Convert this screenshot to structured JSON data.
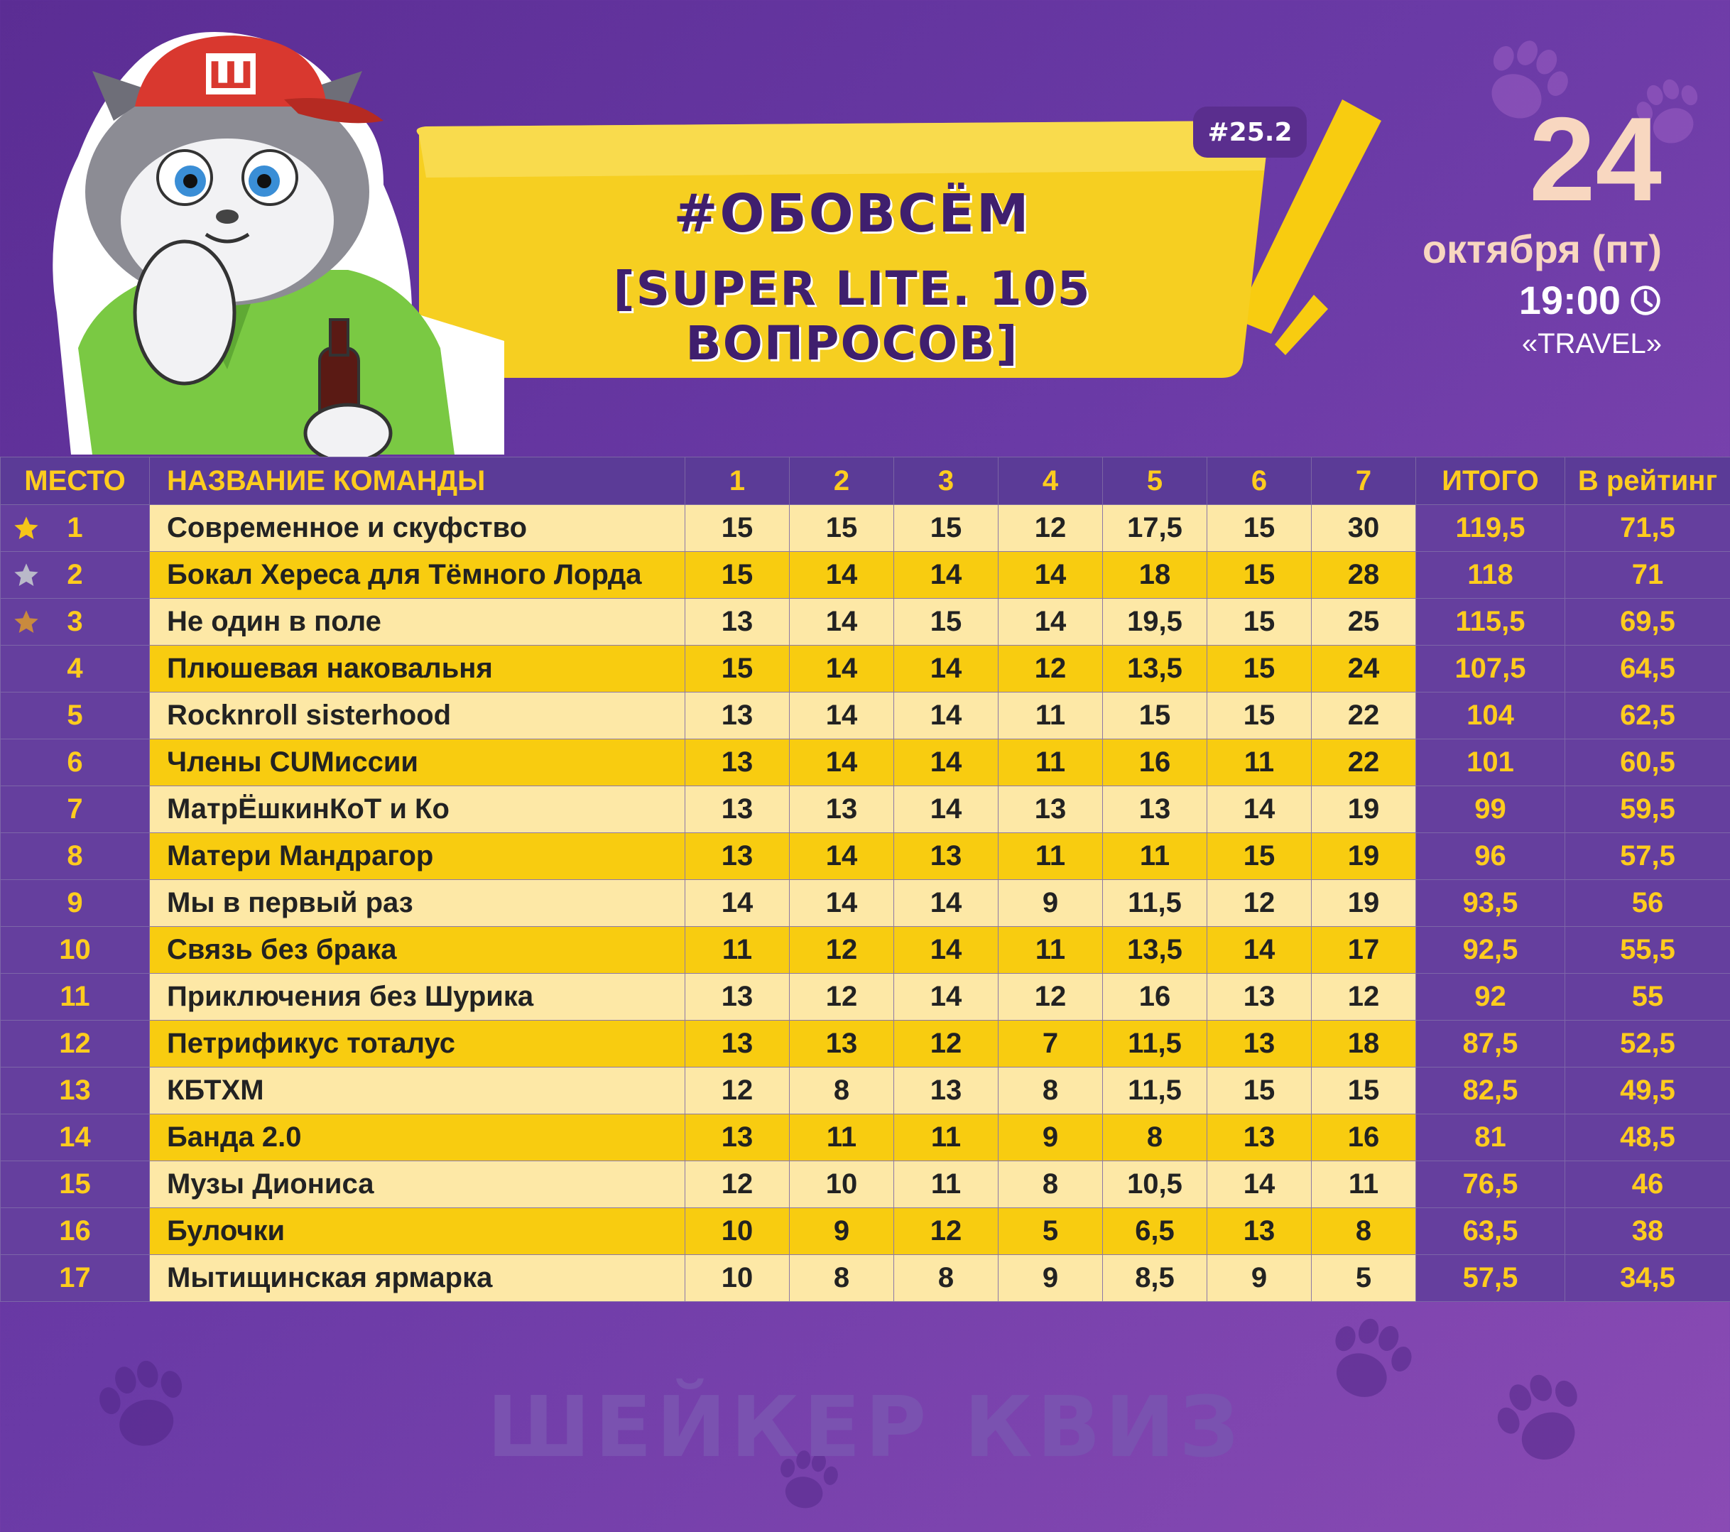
{
  "header": {
    "badge": "#25.2",
    "title_line1": "#ОБОВСЁМ",
    "title_line2": "[SUPER LITE. 105 ВОПРОСОВ]",
    "day": "24",
    "month": "октября (пт)",
    "time": "19:00",
    "venue": "«TRAVEL»",
    "mascot_cap_letter": "Ш"
  },
  "table": {
    "columns": [
      "МЕСТО",
      "НАЗВАНИЕ КОМАНДЫ",
      "1",
      "2",
      "3",
      "4",
      "5",
      "6",
      "7",
      "ИТОГО",
      "В рейтинг"
    ],
    "rows": [
      {
        "place": "1",
        "medal": "gold",
        "name": "Современное и скуфство",
        "scores": [
          "15",
          "15",
          "15",
          "12",
          "17,5",
          "15",
          "30"
        ],
        "total": "119,5",
        "rating": "71,5"
      },
      {
        "place": "2",
        "medal": "silver",
        "name": "Бокал Хереса для Тёмного Лорда",
        "scores": [
          "15",
          "14",
          "14",
          "14",
          "18",
          "15",
          "28"
        ],
        "total": "118",
        "rating": "71"
      },
      {
        "place": "3",
        "medal": "bronze",
        "name": "Не один в поле",
        "scores": [
          "13",
          "14",
          "15",
          "14",
          "19,5",
          "15",
          "25"
        ],
        "total": "115,5",
        "rating": "69,5"
      },
      {
        "place": "4",
        "name": "Плюшевая наковальня",
        "scores": [
          "15",
          "14",
          "14",
          "12",
          "13,5",
          "15",
          "24"
        ],
        "total": "107,5",
        "rating": "64,5"
      },
      {
        "place": "5",
        "name": "Rocknroll sisterhood",
        "scores": [
          "13",
          "14",
          "14",
          "11",
          "15",
          "15",
          "22"
        ],
        "total": "104",
        "rating": "62,5"
      },
      {
        "place": "6",
        "name": "Члены CUМиссии",
        "scores": [
          "13",
          "14",
          "14",
          "11",
          "16",
          "11",
          "22"
        ],
        "total": "101",
        "rating": "60,5"
      },
      {
        "place": "7",
        "name": "МатрЁшкинКоТ и Ко",
        "scores": [
          "13",
          "13",
          "14",
          "13",
          "13",
          "14",
          "19"
        ],
        "total": "99",
        "rating": "59,5"
      },
      {
        "place": "8",
        "name": "Матери Мандрагор",
        "scores": [
          "13",
          "14",
          "13",
          "11",
          "11",
          "15",
          "19"
        ],
        "total": "96",
        "rating": "57,5"
      },
      {
        "place": "9",
        "name": "Мы в первый раз",
        "scores": [
          "14",
          "14",
          "14",
          "9",
          "11,5",
          "12",
          "19"
        ],
        "total": "93,5",
        "rating": "56"
      },
      {
        "place": "10",
        "name": "Связь без брака",
        "scores": [
          "11",
          "12",
          "14",
          "11",
          "13,5",
          "14",
          "17"
        ],
        "total": "92,5",
        "rating": "55,5"
      },
      {
        "place": "11",
        "name": "Приключения без Шурика",
        "scores": [
          "13",
          "12",
          "14",
          "12",
          "16",
          "13",
          "12"
        ],
        "total": "92",
        "rating": "55"
      },
      {
        "place": "12",
        "name": "Петрификус тоталус",
        "scores": [
          "13",
          "13",
          "12",
          "7",
          "11,5",
          "13",
          "18"
        ],
        "total": "87,5",
        "rating": "52,5"
      },
      {
        "place": "13",
        "name": "КБТХМ",
        "scores": [
          "12",
          "8",
          "13",
          "8",
          "11,5",
          "15",
          "15"
        ],
        "total": "82,5",
        "rating": "49,5"
      },
      {
        "place": "14",
        "name": "Банда 2.0",
        "scores": [
          "13",
          "11",
          "11",
          "9",
          "8",
          "13",
          "16"
        ],
        "total": "81",
        "rating": "48,5"
      },
      {
        "place": "15",
        "name": "Музы Диониса",
        "scores": [
          "12",
          "10",
          "11",
          "8",
          "10,5",
          "14",
          "11"
        ],
        "total": "76,5",
        "rating": "46"
      },
      {
        "place": "16",
        "name": "Булочки",
        "scores": [
          "10",
          "9",
          "12",
          "5",
          "6,5",
          "13",
          "8"
        ],
        "total": "63,5",
        "rating": "38"
      },
      {
        "place": "17",
        "name": "Мытищинская ярмарка",
        "scores": [
          "10",
          "8",
          "8",
          "9",
          "8,5",
          "9",
          "5"
        ],
        "total": "57,5",
        "rating": "34,5"
      }
    ]
  },
  "footer": {
    "watermark": "ШЕЙКЕР КВИЗ"
  },
  "colors": {
    "background": "#6a3aa6",
    "accent_yellow": "#f8cc10",
    "light_yellow": "#fde8a6",
    "header_text": "#ffcc1e",
    "title_purple": "#3f1f6e",
    "gold_star": "#f5c518",
    "silver_star": "#b9b9c9",
    "bronze_star": "#c98a3e"
  },
  "icons": [
    "paw-icon",
    "clock-icon",
    "star-icon",
    "cat-mascot"
  ]
}
